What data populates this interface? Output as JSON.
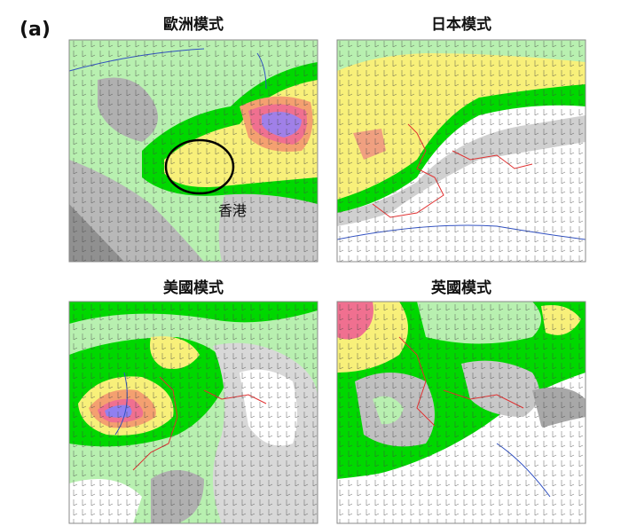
{
  "label": "(a)",
  "panels": [
    {
      "title": "歐洲模式",
      "annotation": "香港"
    },
    {
      "title": "日本模式"
    },
    {
      "title": "美國模式"
    },
    {
      "title": "英國模式"
    }
  ]
}
